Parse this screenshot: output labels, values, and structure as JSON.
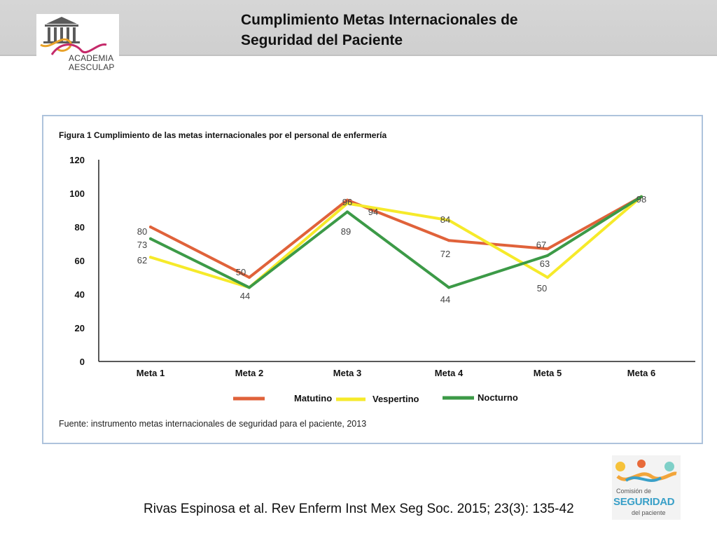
{
  "header": {
    "title_line1": "Cumplimiento Metas Internacionales de",
    "title_line2": "Seguridad del Paciente",
    "logo_left_line1": "ACADEMIA",
    "logo_left_line2": "AESCULAP"
  },
  "figure": {
    "caption": "Figura 1 Cumplimiento de las metas internacionales por el personal de enfermería",
    "source": "Fuente: instrumento metas internacionales de seguridad para el paciente, 2013"
  },
  "chart_data": {
    "type": "line",
    "categories": [
      "Meta 1",
      "Meta 2",
      "Meta 3",
      "Meta 4",
      "Meta 5",
      "Meta 6"
    ],
    "y_ticks": [
      0,
      20,
      40,
      60,
      80,
      100,
      120
    ],
    "ylim": [
      0,
      120
    ],
    "grid": false,
    "legend_position": "bottom",
    "series": [
      {
        "name": "Matutino",
        "color": "#e0623a",
        "values": [
          80,
          50,
          96,
          72,
          67,
          98
        ]
      },
      {
        "name": "Vespertino",
        "color": "#f6ea2a",
        "values": [
          62,
          44,
          94,
          84,
          50,
          98
        ]
      },
      {
        "name": "Nocturno",
        "color": "#3c9a47",
        "values": [
          73,
          44,
          89,
          44,
          63,
          98
        ]
      }
    ],
    "point_labels": [
      {
        "category": "Meta 1",
        "text": "80"
      },
      {
        "category": "Meta 1",
        "text": "73"
      },
      {
        "category": "Meta 1",
        "text": "62"
      },
      {
        "category": "Meta 2",
        "text": "50"
      },
      {
        "category": "Meta 2",
        "text": "44"
      },
      {
        "category": "Meta 3",
        "text": "96"
      },
      {
        "category": "Meta 3",
        "text": "94"
      },
      {
        "category": "Meta 3",
        "text": "89"
      },
      {
        "category": "Meta 4",
        "text": "84"
      },
      {
        "category": "Meta 4",
        "text": "72"
      },
      {
        "category": "Meta 4",
        "text": "44"
      },
      {
        "category": "Meta 5",
        "text": "67"
      },
      {
        "category": "Meta 5",
        "text": "63"
      },
      {
        "category": "Meta 5",
        "text": "50"
      },
      {
        "category": "Meta 6",
        "text": "98"
      }
    ]
  },
  "citation": "Rivas Espinosa et al. Rev Enferm Inst Mex Seg Soc. 2015; 23(3): 135-42",
  "logo_right": {
    "line1": "Comisión de",
    "line2": "SEGURIDAD",
    "line3": "del paciente"
  }
}
